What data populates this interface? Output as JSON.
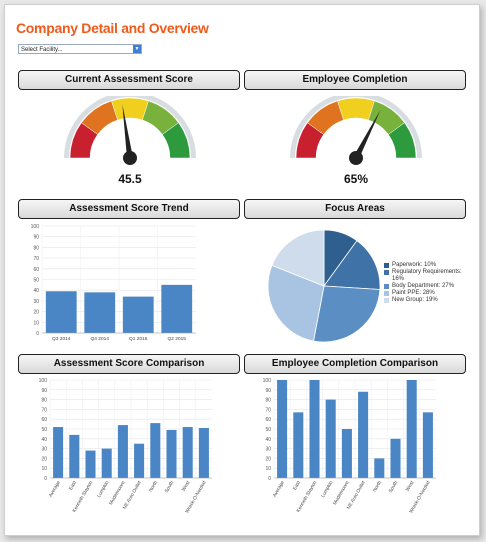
{
  "page": {
    "title": "Company Detail and Overview"
  },
  "facility_select": {
    "value": "Select Facility..."
  },
  "panels": {
    "assessment_score": {
      "title": "Current Assessment Score",
      "value_label": "45.5",
      "value": 45.5,
      "max": 100
    },
    "employee_completion": {
      "title": "Employee Completion",
      "value_label": "65%",
      "value": 65,
      "max": 100
    },
    "assessment_trend": {
      "title": "Assessment Score Trend"
    },
    "focus_areas": {
      "title": "Focus Areas"
    },
    "assessment_comparison": {
      "title": "Assessment Score Comparison"
    },
    "completion_comparison": {
      "title": "Employee Completion Comparison"
    }
  },
  "gauge_colors": [
    "#c8202f",
    "#e0731f",
    "#f0cf1f",
    "#79b13d",
    "#2d9a3e"
  ],
  "chart_data": [
    {
      "id": "assessment_trend",
      "type": "bar",
      "categories": [
        "Q3 2014",
        "Q4 2014",
        "Q1 2015",
        "Q2 2015"
      ],
      "values": [
        39,
        38,
        34,
        45
      ],
      "ylim": [
        0,
        100
      ],
      "yticks": [
        0,
        10,
        20,
        30,
        40,
        50,
        60,
        70,
        80,
        90,
        100
      ],
      "grid": true,
      "color": "#4a86c5"
    },
    {
      "id": "focus_areas",
      "type": "pie",
      "slices": [
        {
          "label": "Paperwork:",
          "pct": "10%",
          "value": 10,
          "color": "#2f5f8f"
        },
        {
          "label": "Regulatory Requirements:",
          "pct": "16%",
          "value": 16,
          "color": "#3f73a8"
        },
        {
          "label": "Body Department:",
          "pct": "27%",
          "value": 27,
          "color": "#5b8fc4"
        },
        {
          "label": "Paint PPE:",
          "pct": "28%",
          "value": 28,
          "color": "#a9c4e2"
        },
        {
          "label": "New Group:",
          "pct": "19%",
          "value": 19,
          "color": "#cfdcec"
        }
      ],
      "legend_position": "right"
    },
    {
      "id": "assessment_comparison",
      "type": "bar",
      "categories": [
        "Average",
        "East",
        "Kenneth Slayton",
        "Lumpkin",
        "Modelmoore",
        "NE Auto Outlet",
        "North",
        "South",
        "West",
        "Wreck-O-Nerded"
      ],
      "values": [
        52,
        44,
        28,
        30,
        54,
        35,
        56,
        49,
        52,
        51
      ],
      "ylim": [
        0,
        100
      ],
      "yticks": [
        0,
        10,
        20,
        30,
        40,
        50,
        60,
        70,
        80,
        90,
        100
      ],
      "grid": true,
      "color": "#4a86c5"
    },
    {
      "id": "completion_comparison",
      "type": "bar",
      "categories": [
        "Average",
        "East",
        "Kenneth Slayton",
        "Lumpkin",
        "Modelmoore",
        "NE Auto Outlet",
        "North",
        "South",
        "West",
        "Wreck-O-Nerded"
      ],
      "values": [
        100,
        67,
        100,
        80,
        50,
        88,
        20,
        40,
        100,
        67
      ],
      "ylim": [
        0,
        100
      ],
      "yticks": [
        0,
        10,
        20,
        30,
        40,
        50,
        60,
        70,
        80,
        90,
        100
      ],
      "grid": true,
      "color": "#4a86c5"
    }
  ]
}
